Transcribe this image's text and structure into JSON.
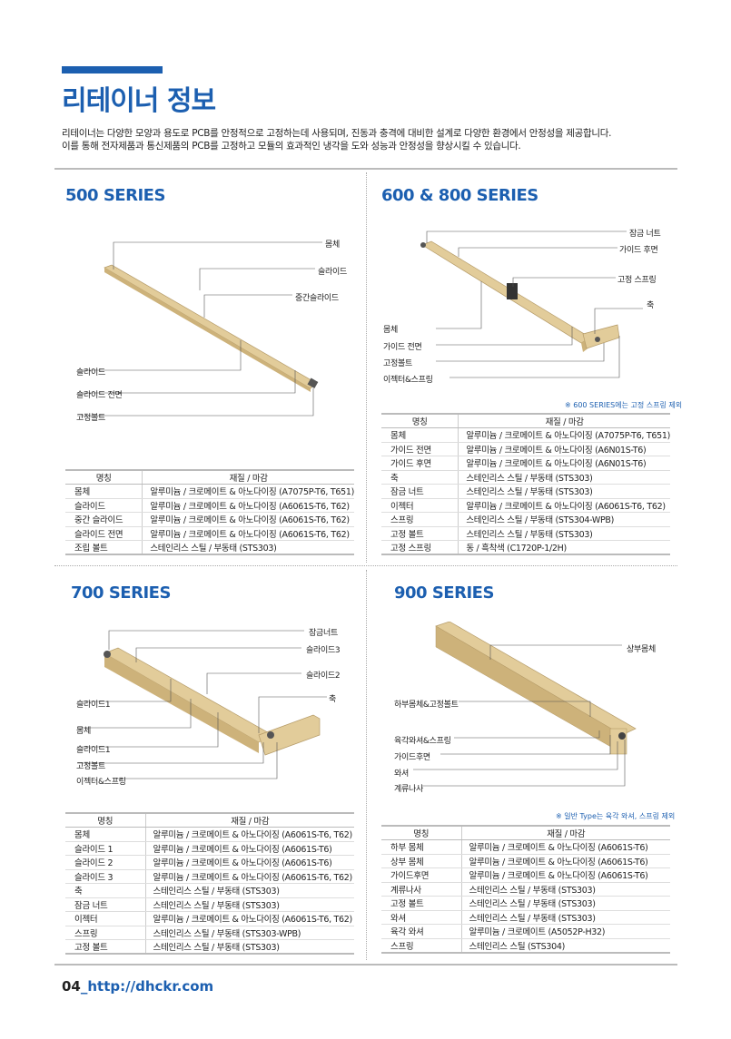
{
  "header": {
    "title": "리테이너 정보",
    "desc_line1": "리테이너는 다양한 모양과 용도로 PCB를 안정적으로 고정하는데 사용되며, 진동과 충격에 대비한 설계로 다양한 환경에서 안정성을 제공합니다.",
    "desc_line2": "이를 통해 전자제품과 통신제품의 PCB를 고정하고 모듈의 효과적인 냉각을 도와 성능과 안정성을 향상시킬 수 있습니다."
  },
  "colors": {
    "accent": "#1c5fb0",
    "wood": "#e2cc9a"
  },
  "table_headers": [
    "명칭",
    "재질 / 마감"
  ],
  "s500": {
    "title": "500 SERIES",
    "labels": [
      "몸체",
      "슬라이드",
      "중간슬라이드",
      "슬라이드",
      "슬라이드 전면",
      "고정볼트"
    ],
    "rows": [
      [
        "몸체",
        "알루미늄 / 크로메이트 & 아노다이징 (A7075P-T6, T651)"
      ],
      [
        "슬라이드",
        "알루미늄 / 크로메이트 & 아노다이징 (A6061S-T6, T62)"
      ],
      [
        "중간 슬라이드",
        "알루미늄 / 크로메이트 & 아노다이징 (A6061S-T6, T62)"
      ],
      [
        "슬라이드 전면",
        "알루미늄 / 크로메이트 & 아노다이징 (A6061S-T6, T62)"
      ],
      [
        "조립 볼트",
        "스테인리스 스틸 / 부동태 (STS303)"
      ]
    ]
  },
  "s600": {
    "title": "600 & 800 SERIES",
    "note": "※ 600 SERIES에는 고정 스프링 제외",
    "labels": [
      "잠금 너트",
      "가이드 후면",
      "고정 스프링",
      "축",
      "몸체",
      "가이드 전면",
      "고정볼트",
      "이젝터&스프링"
    ],
    "rows": [
      [
        "몸체",
        "알루미늄 / 크로메이트 & 아노다이징 (A7075P-T6, T651)"
      ],
      [
        "가이드 전면",
        "알루미늄 / 크로메이트 & 아노다이징 (A6N01S-T6)"
      ],
      [
        "가이드 후면",
        "알루미늄 / 크로메이트 & 아노다이징 (A6N01S-T6)"
      ],
      [
        "축",
        "스테인리스 스틸 / 부동태 (STS303)"
      ],
      [
        "잠금 너트",
        "스테인리스 스틸 / 부동태 (STS303)"
      ],
      [
        "이젝터",
        "알루미늄 / 크로메이트 & 아노다이징 (A6061S-T6, T62)"
      ],
      [
        "스프링",
        "스테인리스 스틸 / 부동태 (STS304-WPB)"
      ],
      [
        "고정 볼트",
        "스테인리스 스틸 / 부동태 (STS303)"
      ],
      [
        "고정 스프링",
        "동 / 흑착색 (C1720P-1/2H)"
      ]
    ]
  },
  "s700": {
    "title": "700 SERIES",
    "labels": [
      "잠금너트",
      "슬라이드3",
      "슬라이드2",
      "축",
      "슬라이드1",
      "몸체",
      "슬라이드1",
      "고정볼트",
      "이젝터&스프링"
    ],
    "rows": [
      [
        "몸체",
        "알루미늄 / 크로메이트 & 아노다이징 (A6061S-T6, T62)"
      ],
      [
        "슬라이드 1",
        "알루미늄 / 크로메이트 & 아노다이징 (A6061S-T6)"
      ],
      [
        "슬라이드 2",
        "알루미늄 / 크로메이트 & 아노다이징 (A6061S-T6)"
      ],
      [
        "슬라이드 3",
        "알루미늄 / 크로메이트 & 아노다이징 (A6061S-T6, T62)"
      ],
      [
        "축",
        "스테인리스 스틸 / 부동태 (STS303)"
      ],
      [
        "잠금 너트",
        "스테인리스 스틸 / 부동태 (STS303)"
      ],
      [
        "이젝터",
        "알루미늄 / 크로메이트 & 아노다이징 (A6061S-T6, T62)"
      ],
      [
        "스프링",
        "스테인리스 스틸 / 부동태 (STS303-WPB)"
      ],
      [
        "고정 볼트",
        "스테인리스 스틸 / 부동태 (STS303)"
      ]
    ]
  },
  "s900": {
    "title": "900 SERIES",
    "note": "※ 일반 Type는 육각 와셔, 스프링 제외",
    "labels": [
      "상부몸체",
      "하부몸체&고정볼트",
      "육각와셔&스프링",
      "가이드후면",
      "와셔",
      "계류나사"
    ],
    "rows": [
      [
        "하부 몸체",
        "알루미늄 / 크로메이트 & 아노다이징 (A6061S-T6)"
      ],
      [
        "상부 몸체",
        "알루미늄 / 크로메이트 & 아노다이징 (A6061S-T6)"
      ],
      [
        "가이드후면",
        "알루미늄 / 크로메이트 & 아노다이징 (A6061S-T6)"
      ],
      [
        "계류나사",
        "스테인리스 스틸 / 부동태 (STS303)"
      ],
      [
        "고정 볼트",
        "스테인리스 스틸 / 부동태 (STS303)"
      ],
      [
        "와셔",
        "스테인리스 스틸 / 부동태 (STS303)"
      ],
      [
        "육각 와셔",
        "알루미늄 / 크로메이트 (A5052P-H32)"
      ],
      [
        "스프링",
        "스테인리스 스틸 (STS304)"
      ]
    ]
  },
  "footer": {
    "page": "04",
    "url": "_http://dhckr.com"
  }
}
